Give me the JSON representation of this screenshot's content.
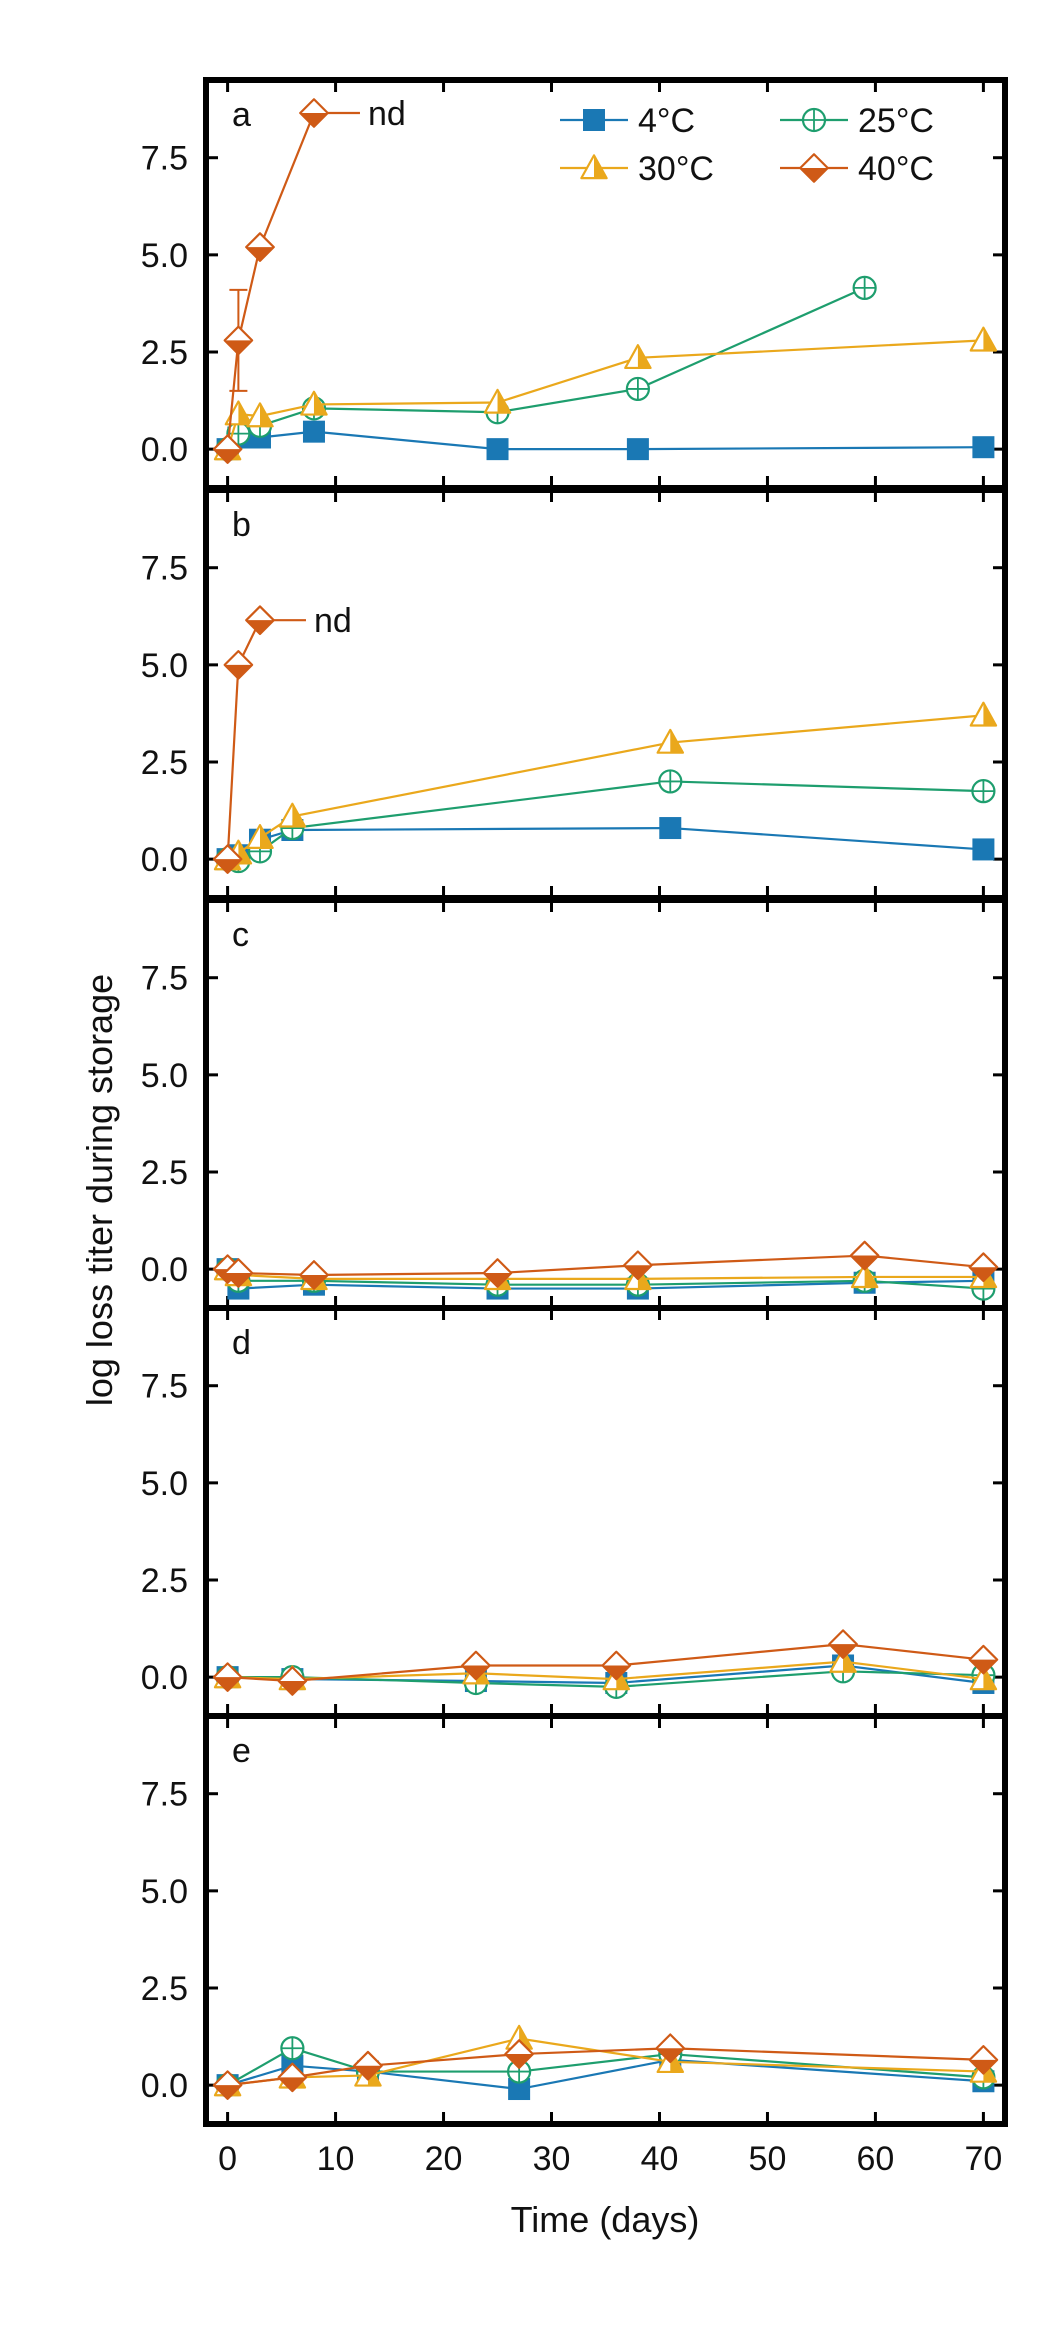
{
  "figure": {
    "ylabel": "log loss titer during storage",
    "xlabel": "Time (days)"
  },
  "styles": {
    "4°C": {
      "color": "#1a78b4",
      "marker": "filled-square"
    },
    "25°C": {
      "color": "#1e9e6e",
      "marker": "crossed-circle"
    },
    "30°C": {
      "color": "#eaa81c",
      "marker": "half-filled-triangle"
    },
    "40°C": {
      "color": "#cf5a16",
      "marker": "half-filled-diamond"
    }
  },
  "legend": {
    "entries": [
      "4°C",
      "25°C",
      "30°C",
      "40°C"
    ],
    "placement": "top-right of panel a"
  },
  "chart_data": [
    {
      "type": "line",
      "panel": "a",
      "xlim": [
        -2,
        72
      ],
      "ylim": [
        -1,
        9.5
      ],
      "xticks": [
        0,
        10,
        20,
        30,
        40,
        50,
        60,
        70
      ],
      "yticks": [
        0.0,
        2.5,
        5.0,
        7.5
      ],
      "ytick_labels": [
        "0.0",
        "2.5",
        "5.0",
        "7.5"
      ],
      "annotation": {
        "text": "nd",
        "series": "40°C"
      },
      "series": [
        {
          "name": "4°C",
          "x": [
            0,
            1,
            2,
            3,
            8,
            25,
            38,
            70
          ],
          "y": [
            0,
            0.3,
            0.3,
            0.3,
            0.45,
            0,
            0,
            0.05
          ]
        },
        {
          "name": "25°C",
          "x": [
            0,
            1,
            3,
            8,
            25,
            38,
            59
          ],
          "y": [
            0,
            0.4,
            0.6,
            1.05,
            0.95,
            1.55,
            4.15
          ]
        },
        {
          "name": "30°C",
          "x": [
            0,
            1,
            3,
            8,
            25,
            38,
            70
          ],
          "y": [
            0,
            0.9,
            0.85,
            1.15,
            1.2,
            2.35,
            2.8
          ]
        },
        {
          "name": "40°C",
          "x": [
            0,
            1,
            3,
            8
          ],
          "y": [
            0,
            2.8,
            5.2,
            8.65
          ],
          "err": [
            0,
            1.3,
            0,
            0
          ]
        }
      ]
    },
    {
      "type": "line",
      "panel": "b",
      "xlim": [
        -2,
        72
      ],
      "ylim": [
        -1,
        9.5
      ],
      "xticks": [
        0,
        10,
        20,
        30,
        40,
        50,
        60,
        70
      ],
      "yticks": [
        0.0,
        2.5,
        5.0,
        7.5
      ],
      "ytick_labels": [
        "0.0",
        "2.5",
        "5.0",
        "7.5"
      ],
      "annotation": {
        "text": "nd",
        "series": "40°C"
      },
      "series": [
        {
          "name": "4°C",
          "x": [
            0,
            1,
            3,
            6,
            41,
            70
          ],
          "y": [
            0,
            0.1,
            0.5,
            0.75,
            0.8,
            0.25
          ]
        },
        {
          "name": "25°C",
          "x": [
            0,
            1,
            3,
            6,
            41,
            70
          ],
          "y": [
            0,
            -0.05,
            0.2,
            0.8,
            2.0,
            1.75
          ]
        },
        {
          "name": "30°C",
          "x": [
            0,
            1,
            3,
            6,
            41,
            70
          ],
          "y": [
            0,
            0.15,
            0.55,
            1.1,
            3.0,
            3.7
          ]
        },
        {
          "name": "40°C",
          "x": [
            0,
            1,
            3
          ],
          "y": [
            0,
            5.0,
            6.15
          ]
        }
      ]
    },
    {
      "type": "line",
      "panel": "c",
      "xlim": [
        -2,
        72
      ],
      "ylim": [
        -1,
        9.5
      ],
      "xticks": [
        0,
        10,
        20,
        30,
        40,
        50,
        60,
        70
      ],
      "yticks": [
        0.0,
        2.5,
        5.0,
        7.5
      ],
      "ytick_labels": [
        "0.0",
        "2.5",
        "5.0",
        "7.5"
      ],
      "series": [
        {
          "name": "4°C",
          "x": [
            0,
            1,
            8,
            25,
            38,
            59,
            70
          ],
          "y": [
            0,
            -0.5,
            -0.4,
            -0.5,
            -0.5,
            -0.35,
            -0.3
          ]
        },
        {
          "name": "25°C",
          "x": [
            0,
            1,
            8,
            25,
            38,
            59,
            70
          ],
          "y": [
            0,
            -0.3,
            -0.3,
            -0.4,
            -0.4,
            -0.3,
            -0.5
          ]
        },
        {
          "name": "30°C",
          "x": [
            0,
            1,
            8,
            25,
            38,
            59,
            70
          ],
          "y": [
            0,
            -0.15,
            -0.25,
            -0.25,
            -0.25,
            -0.2,
            -0.2
          ]
        },
        {
          "name": "40°C",
          "x": [
            0,
            1,
            8,
            25,
            38,
            59,
            70
          ],
          "y": [
            0,
            -0.1,
            -0.15,
            -0.1,
            0.1,
            0.35,
            0.05
          ]
        }
      ]
    },
    {
      "type": "line",
      "panel": "d",
      "xlim": [
        -2,
        72
      ],
      "ylim": [
        -1,
        9.5
      ],
      "xticks": [
        0,
        10,
        20,
        30,
        40,
        50,
        60,
        70
      ],
      "yticks": [
        0.0,
        2.5,
        5.0,
        7.5
      ],
      "ytick_labels": [
        "0.0",
        "2.5",
        "5.0",
        "7.5"
      ],
      "series": [
        {
          "name": "4°C",
          "x": [
            0,
            6,
            23,
            36,
            57,
            70
          ],
          "y": [
            0,
            -0.05,
            -0.1,
            -0.15,
            0.3,
            -0.15
          ]
        },
        {
          "name": "25°C",
          "x": [
            0,
            6,
            23,
            36,
            57,
            70
          ],
          "y": [
            0,
            0,
            -0.15,
            -0.25,
            0.15,
            0.05
          ]
        },
        {
          "name": "30°C",
          "x": [
            0,
            6,
            23,
            36,
            57,
            70
          ],
          "y": [
            0,
            -0.05,
            0.1,
            -0.05,
            0.4,
            -0.05
          ]
        },
        {
          "name": "40°C",
          "x": [
            0,
            6,
            23,
            36,
            57,
            70
          ],
          "y": [
            0,
            -0.1,
            0.3,
            0.3,
            0.85,
            0.45
          ]
        }
      ]
    },
    {
      "type": "line",
      "panel": "e",
      "xlim": [
        -2,
        72
      ],
      "ylim": [
        -1,
        9.5
      ],
      "xticks": [
        0,
        10,
        20,
        30,
        40,
        50,
        60,
        70
      ],
      "yticks": [
        0.0,
        2.5,
        5.0,
        7.5
      ],
      "ytick_labels": [
        "0.0",
        "2.5",
        "5.0",
        "7.5"
      ],
      "series": [
        {
          "name": "4°C",
          "x": [
            0,
            6,
            13,
            27,
            41,
            70
          ],
          "y": [
            0,
            0.5,
            0.35,
            -0.1,
            0.65,
            0.1
          ]
        },
        {
          "name": "25°C",
          "x": [
            0,
            6,
            13,
            27,
            41,
            70
          ],
          "y": [
            0,
            0.95,
            0.35,
            0.35,
            0.8,
            0.2
          ]
        },
        {
          "name": "30°C",
          "x": [
            0,
            6,
            13,
            27,
            41,
            70
          ],
          "y": [
            0,
            0.2,
            0.25,
            1.2,
            0.6,
            0.35
          ]
        },
        {
          "name": "40°C",
          "x": [
            0,
            6,
            13,
            27,
            41,
            70
          ],
          "y": [
            0,
            0.2,
            0.5,
            0.8,
            0.95,
            0.65
          ]
        }
      ]
    }
  ]
}
